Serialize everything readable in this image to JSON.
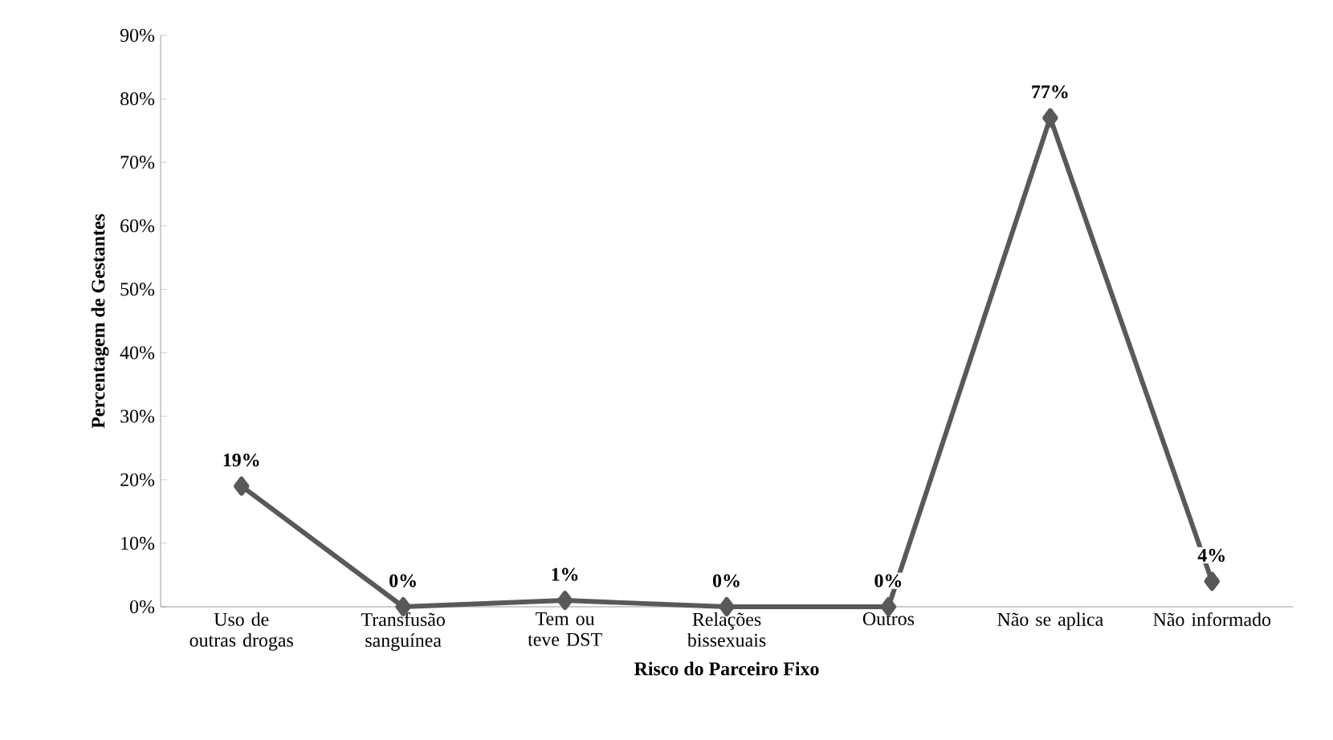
{
  "chart_data": {
    "type": "line",
    "xlabel": "Risco do Parceiro Fixo",
    "ylabel": "Percentagem de Gestantes",
    "categories": [
      "Uso de outras drogas",
      "Transfusão sanguínea",
      "Tem ou teve DST",
      "Relações bissexuais",
      "Outros",
      "Não se aplica",
      "Não informado"
    ],
    "values": [
      19,
      0,
      1,
      0,
      0,
      77,
      4
    ],
    "value_labels": [
      "19%",
      "0%",
      "1%",
      "0%",
      "0%",
      "77%",
      "4%"
    ],
    "color": "#595959",
    "marker": "diamond",
    "line_style": "solid",
    "ylim": [
      0,
      90
    ],
    "yticks": [
      {
        "value": 0,
        "label": "0%"
      },
      {
        "value": 10,
        "label": "10%"
      },
      {
        "value": 20,
        "label": "20%"
      },
      {
        "value": 30,
        "label": "30%"
      },
      {
        "value": 40,
        "label": "40%"
      },
      {
        "value": 50,
        "label": "50%"
      },
      {
        "value": 60,
        "label": "60%"
      },
      {
        "value": 70,
        "label": "70%"
      },
      {
        "value": 80,
        "label": "80%"
      },
      {
        "value": 90,
        "label": "90%"
      }
    ]
  }
}
